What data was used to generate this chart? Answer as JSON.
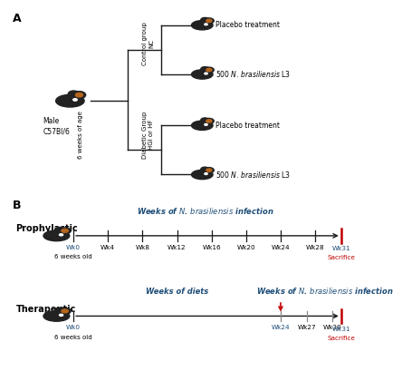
{
  "panel_A_label": "A",
  "panel_B_label": "B",
  "mouse_label_main": "Male\nC57Bl/6",
  "age_label": "6 weeks of age",
  "control_group_label": "Control group\nNC",
  "diabetic_group_label": "Diabetic Group\nHGI or HF",
  "placebo1": "Placebo treatment",
  "infection1": "500 N. brasiliensis L3",
  "placebo2": "Placebo treatment",
  "infection2": "500 N. brasiliensis L3",
  "prophylactic_label": "Prophylactic",
  "therapeutic_label": "Therapeutic",
  "weeks_infection_label": "Weeks of N. brasiliensis infection",
  "weeks_diets_label": "Weeks of diets",
  "weeks_infection2_label": "Weeks of N. brasiliensis infection",
  "six_weeks_old": "6 weeks old",
  "sacrifice_label": "Sacrifice",
  "prophylactic_ticks": [
    0,
    4,
    8,
    12,
    16,
    20,
    24,
    28,
    31
  ],
  "prophylactic_tick_labels": [
    "Wk0",
    "Wk4",
    "Wk8",
    "Wk12",
    "Wk16",
    "Wk20",
    "Wk24",
    "Wk28",
    "Wk31"
  ],
  "therapeutic_ticks": [
    0,
    24,
    27,
    30,
    31
  ],
  "therapeutic_tick_labels": [
    "Wk0",
    "Wk24",
    "Wk27",
    "Wk30",
    "Wk31"
  ],
  "blue_color": "#1f4e79",
  "red_color": "#c00000",
  "line_color": "#1a1a1a",
  "bg_color": "#ffffff"
}
